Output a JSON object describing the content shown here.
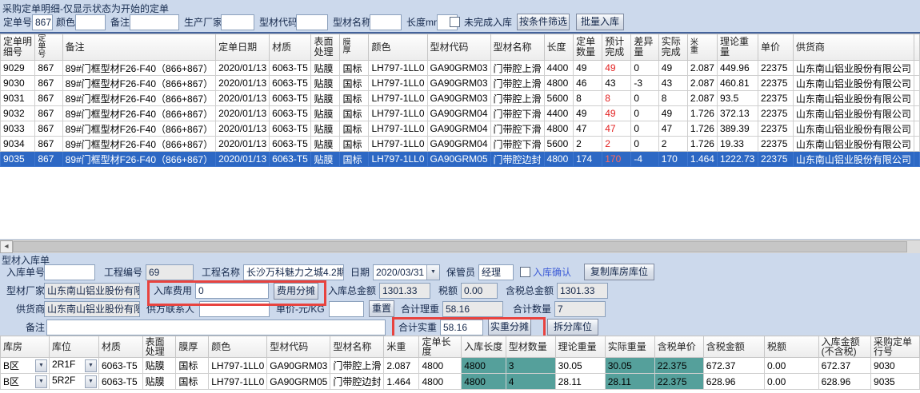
{
  "colors": {
    "window_bg": "#ccd9ec",
    "selection_blue": "#2d68c4",
    "accent_red": "#e21f1f",
    "teal_highlight": "#55a09b",
    "frame_red": "#e8433f"
  },
  "purchase": {
    "title": "采购定单明细-仅显示状态为开始的定单",
    "filters": [
      {
        "id": "order-no",
        "label": "定单号",
        "value": "867"
      },
      {
        "id": "color",
        "label": "颜色",
        "value": ""
      },
      {
        "id": "remark",
        "label": "备注",
        "value": ""
      },
      {
        "id": "manufacturer",
        "label": "生产厂家",
        "value": ""
      },
      {
        "id": "profile-code",
        "label": "型材代码",
        "value": ""
      },
      {
        "id": "profile-name",
        "label": "型材名称",
        "value": ""
      },
      {
        "id": "length-mm",
        "label": "长度mm",
        "value": ""
      }
    ],
    "unfinished_checkbox_label": "未完成入库",
    "unfinished_checked": false,
    "buttons": {
      "filter": "按条件筛选",
      "batch_inbound": "批量入库"
    },
    "table": {
      "columns": [
        "定单明细号",
        "定单号",
        "备注",
        "定单日期",
        "材质",
        "表面处理",
        "膜厚",
        "颜色",
        "型材代码",
        "型材名称",
        "长度",
        "定单数量",
        "预计完成",
        "差异量",
        "实际完成",
        "米重",
        "理论重量",
        "单价",
        "供货商"
      ],
      "rows": [
        [
          "9029",
          "867",
          "89#门框型材F26-F40（866+867）",
          "2020/01/13",
          "6063-T5",
          "贴膜",
          "国标",
          "LH797-1LL0",
          "GA90GRM03",
          "门带腔上滑",
          "4400",
          "49",
          "49",
          "0",
          "49",
          "2.087",
          "449.96",
          "22375",
          "山东南山铝业股份有限公司"
        ],
        [
          "9030",
          "867",
          "89#门框型材F26-F40（866+867）",
          "2020/01/13",
          "6063-T5",
          "贴膜",
          "国标",
          "LH797-1LL0",
          "GA90GRM03",
          "门带腔上滑",
          "4800",
          "46",
          "43",
          "-3",
          "43",
          "2.087",
          "460.81",
          "22375",
          "山东南山铝业股份有限公司"
        ],
        [
          "9031",
          "867",
          "89#门框型材F26-F40（866+867）",
          "2020/01/13",
          "6063-T5",
          "贴膜",
          "国标",
          "LH797-1LL0",
          "GA90GRM03",
          "门带腔上滑",
          "5600",
          "8",
          "8",
          "0",
          "8",
          "2.087",
          "93.5",
          "22375",
          "山东南山铝业股份有限公司"
        ],
        [
          "9032",
          "867",
          "89#门框型材F26-F40（866+867）",
          "2020/01/13",
          "6063-T5",
          "贴膜",
          "国标",
          "LH797-1LL0",
          "GA90GRM04",
          "门带腔下滑",
          "4400",
          "49",
          "49",
          "0",
          "49",
          "1.726",
          "372.13",
          "22375",
          "山东南山铝业股份有限公司"
        ],
        [
          "9033",
          "867",
          "89#门框型材F26-F40（866+867）",
          "2020/01/13",
          "6063-T5",
          "贴膜",
          "国标",
          "LH797-1LL0",
          "GA90GRM04",
          "门带腔下滑",
          "4800",
          "47",
          "47",
          "0",
          "47",
          "1.726",
          "389.39",
          "22375",
          "山东南山铝业股份有限公司"
        ],
        [
          "9034",
          "867",
          "89#门框型材F26-F40（866+867）",
          "2020/01/13",
          "6063-T5",
          "贴膜",
          "国标",
          "LH797-1LL0",
          "GA90GRM04",
          "门带腔下滑",
          "5600",
          "2",
          "2",
          "0",
          "2",
          "1.726",
          "19.33",
          "22375",
          "山东南山铝业股份有限公司"
        ],
        [
          "9035",
          "867",
          "89#门框型材F26-F40（866+867）",
          "2020/01/13",
          "6063-T5",
          "贴膜",
          "国标",
          "LH797-1LL0",
          "GA90GRM05",
          "门带腔边封",
          "4800",
          "174",
          "170",
          "-4",
          "170",
          "1.464",
          "1222.73",
          "22375",
          "山东南山铝业股份有限公司"
        ]
      ],
      "red_value_column": 12,
      "red_value_rows": [
        0,
        2,
        3,
        4,
        5,
        6
      ],
      "selected_row_index": 6
    }
  },
  "inbound": {
    "title": "型材入库单",
    "fields": {
      "inbound_no": {
        "label": "入库单号",
        "value": ""
      },
      "project_no": {
        "label": "工程编号",
        "value": "69"
      },
      "project_name": {
        "label": "工程名称",
        "value": "长沙万科魅力之城4.2期"
      },
      "date": {
        "label": "日期",
        "value": "2020/03/31"
      },
      "keeper": {
        "label": "保管员",
        "value": "经理"
      },
      "factory": {
        "label": "型材厂家",
        "value": "山东南山铝业股份有限公司"
      },
      "inbound_fee": {
        "label": "入库费用",
        "value": "0"
      },
      "total_amount": {
        "label": "入库总金额",
        "value": "1301.33"
      },
      "tax": {
        "label": "税额",
        "value": "0.00"
      },
      "tax_total": {
        "label": "含税总金额",
        "value": "1301.33"
      },
      "supplier": {
        "label": "供货商",
        "value": "山东南山铝业股份有限公司"
      },
      "supplier_contact": {
        "label": "供方联系人",
        "value": ""
      },
      "unit_price": {
        "label": "单价-元/KG",
        "value": ""
      },
      "total_theory_weight": {
        "label": "合计理重",
        "value": "58.16"
      },
      "total_qty": {
        "label": "合计数量",
        "value": "7"
      },
      "remark": {
        "label": "备注",
        "value": ""
      },
      "total_actual_weight": {
        "label": "合计实重",
        "value": "58.16"
      }
    },
    "confirm_checkbox_label": "入库确认",
    "confirm_checked": false,
    "buttons": {
      "copy_location": "复制库房库位",
      "fee_allocate": "费用分摊",
      "reset": "重置",
      "weight_allocate": "实重分摊",
      "split_location": "拆分库位"
    },
    "table": {
      "columns": [
        "库房",
        "库位",
        "材质",
        "表面处理",
        "膜厚",
        "颜色",
        "型材代码",
        "型材名称",
        "米重",
        "定单长度",
        "入库长度",
        "型材数量",
        "理论重量",
        "实际重量",
        "含税单价",
        "含税金额",
        "税额",
        "入库金额(不含税)",
        "采购定单行号"
      ],
      "rows": [
        [
          "B区",
          "2R1F",
          "6063-T5",
          "贴膜",
          "国标",
          "LH797-1LL0",
          "GA90GRM03",
          "门带腔上滑",
          "2.087",
          "4800",
          "4800",
          "3",
          "30.05",
          "30.05",
          "22.375",
          "672.37",
          "0.00",
          "672.37",
          "9030"
        ],
        [
          "B区",
          "5R2F",
          "6063-T5",
          "贴膜",
          "国标",
          "LH797-1LL0",
          "GA90GRM05",
          "门带腔边封",
          "1.464",
          "4800",
          "4800",
          "4",
          "28.11",
          "28.11",
          "22.375",
          "628.96",
          "0.00",
          "628.96",
          "9035"
        ]
      ],
      "teal_columns": [
        10,
        11,
        13,
        14
      ],
      "combo_columns": [
        0,
        1
      ]
    }
  },
  "scrollbar": {
    "left_arrow_icon": "◂"
  }
}
